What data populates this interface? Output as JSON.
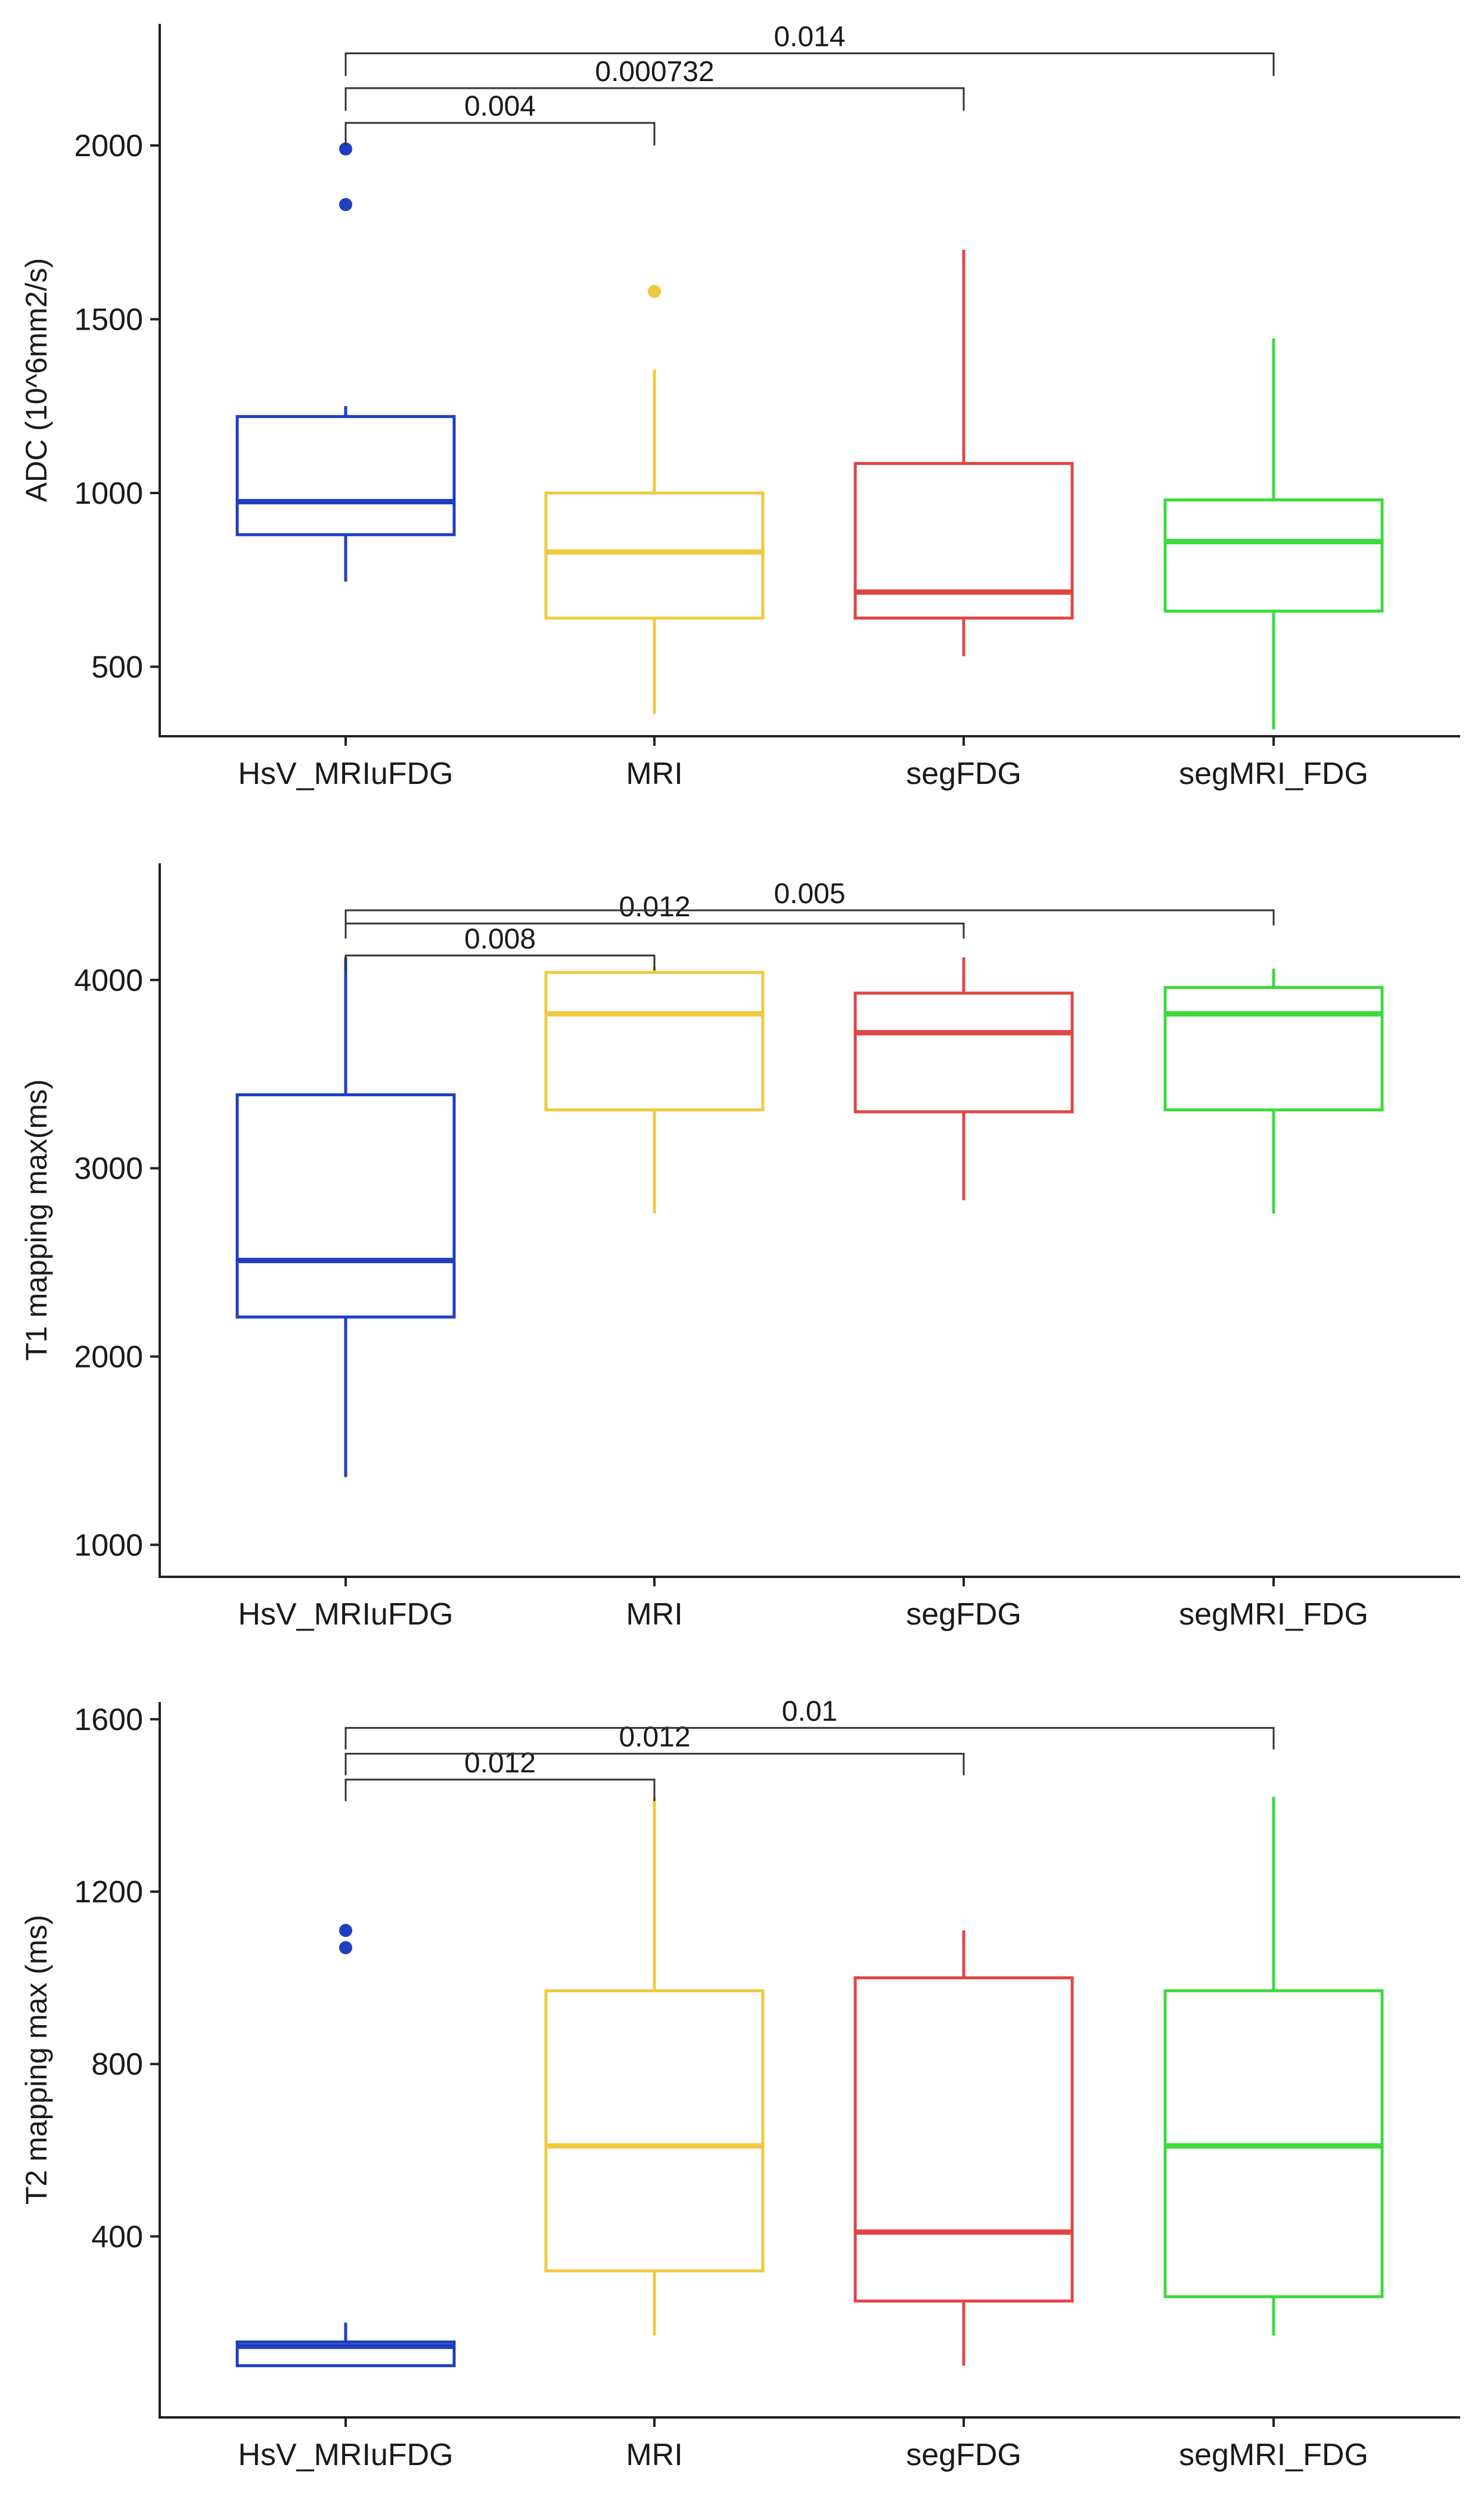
{
  "chart_data": [
    {
      "type": "box",
      "ylabel": "ADC (10^6mm2/s)",
      "ylim": [
        300,
        2350
      ],
      "yticks": [
        500,
        1000,
        1500,
        2000
      ],
      "categories": [
        "HsV_MRIuFDG",
        "MRI",
        "segFDG",
        "segMRI_FDG"
      ],
      "boxes": [
        {
          "name": "HsV_MRIuFDG",
          "color": "#1f3fbf",
          "whisker_low": 745,
          "q1": 880,
          "median": 975,
          "q3": 1220,
          "whisker_high": 1250,
          "outliers": [
            1990,
            1830
          ]
        },
        {
          "name": "MRI",
          "color": "#f0c940",
          "whisker_low": 365,
          "q1": 640,
          "median": 830,
          "q3": 1000,
          "whisker_high": 1355,
          "outliers": [
            1580
          ]
        },
        {
          "name": "segFDG",
          "color": "#e04545",
          "whisker_low": 530,
          "q1": 640,
          "median": 715,
          "q3": 1085,
          "whisker_high": 1700,
          "outliers": []
        },
        {
          "name": "segMRI_FDG",
          "color": "#3ddb3d",
          "whisker_low": 320,
          "q1": 660,
          "median": 860,
          "q3": 980,
          "whisker_high": 1445,
          "outliers": []
        }
      ],
      "comparisons": [
        {
          "from": "HsV_MRIuFDG",
          "to": "MRI",
          "label": "0.004",
          "y": 2065,
          "tip_to": 2000
        },
        {
          "from": "HsV_MRIuFDG",
          "to": "segFDG",
          "label": "0.000732",
          "y": 2165,
          "tip_to": 2100
        },
        {
          "from": "HsV_MRIuFDG",
          "to": "segMRI_FDG",
          "label": "0.014",
          "y": 2265,
          "tip_to": 2200
        }
      ]
    },
    {
      "type": "box",
      "ylabel": "T1 mapping max(ms)",
      "ylim": [
        830,
        4620
      ],
      "yticks": [
        1000,
        2000,
        3000,
        4000
      ],
      "categories": [
        "HsV_MRIuFDG",
        "MRI",
        "segFDG",
        "segMRI_FDG"
      ],
      "boxes": [
        {
          "name": "HsV_MRIuFDG",
          "color": "#1f3fbf",
          "whisker_low": 1360,
          "q1": 2210,
          "median": 2510,
          "q3": 3390,
          "whisker_high": 4120,
          "outliers": []
        },
        {
          "name": "MRI",
          "color": "#f0c940",
          "whisker_low": 2760,
          "q1": 3310,
          "median": 3820,
          "q3": 4040,
          "whisker_high": 4070,
          "outliers": []
        },
        {
          "name": "segFDG",
          "color": "#e04545",
          "whisker_low": 2830,
          "q1": 3300,
          "median": 3720,
          "q3": 3930,
          "whisker_high": 4120,
          "outliers": []
        },
        {
          "name": "segMRI_FDG",
          "color": "#3ddb3d",
          "whisker_low": 2760,
          "q1": 3310,
          "median": 3820,
          "q3": 3960,
          "whisker_high": 4060,
          "outliers": []
        }
      ],
      "comparisons": [
        {
          "from": "HsV_MRIuFDG",
          "to": "MRI",
          "label": "0.008",
          "y": 4130,
          "tip_to": 4050
        },
        {
          "from": "HsV_MRIuFDG",
          "to": "segFDG",
          "label": "0.012",
          "y": 4300,
          "tip_to": 4220
        },
        {
          "from": "HsV_MRIuFDG",
          "to": "segMRI_FDG",
          "label": "0.005",
          "y": 4370,
          "tip_to": 4290
        }
      ]
    },
    {
      "type": "box",
      "ylabel": "T2 mapping max (ms)",
      "ylim": [
        -20,
        1640
      ],
      "yticks": [
        400,
        800,
        1200,
        1600
      ],
      "categories": [
        "HsV_MRIuFDG",
        "MRI",
        "segFDG",
        "segMRI_FDG"
      ],
      "boxes": [
        {
          "name": "HsV_MRIuFDG",
          "color": "#1f3fbf",
          "whisker_low": 100,
          "q1": 100,
          "median": 145,
          "q3": 155,
          "whisker_high": 200,
          "outliers": [
            1110,
            1070
          ]
        },
        {
          "name": "MRI",
          "color": "#f0c940",
          "whisker_low": 170,
          "q1": 320,
          "median": 610,
          "q3": 970,
          "whisker_high": 1420,
          "outliers": []
        },
        {
          "name": "segFDG",
          "color": "#e04545",
          "whisker_low": 100,
          "q1": 250,
          "median": 410,
          "q3": 1000,
          "whisker_high": 1110,
          "outliers": []
        },
        {
          "name": "segMRI_FDG",
          "color": "#3ddb3d",
          "whisker_low": 170,
          "q1": 260,
          "median": 610,
          "q3": 970,
          "whisker_high": 1420,
          "outliers": []
        }
      ],
      "comparisons": [
        {
          "from": "HsV_MRIuFDG",
          "to": "MRI",
          "label": "0.012",
          "y": 1460,
          "tip_to": 1410
        },
        {
          "from": "HsV_MRIuFDG",
          "to": "segFDG",
          "label": "0.012",
          "y": 1520,
          "tip_to": 1470
        },
        {
          "from": "HsV_MRIuFDG",
          "to": "segMRI_FDG",
          "label": "0.01",
          "y": 1580,
          "tip_to": 1530
        }
      ]
    }
  ]
}
